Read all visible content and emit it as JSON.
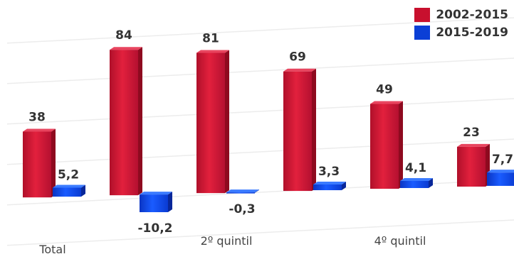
{
  "chart_data": {
    "type": "bar",
    "categories": [
      "Total",
      "",
      "2º quintil",
      "",
      "4º quintil",
      ""
    ],
    "series": [
      {
        "name": "2002-2015",
        "values": [
          38,
          84,
          81,
          69,
          49,
          23
        ],
        "labels": [
          "38",
          "84",
          "81",
          "69",
          "49",
          "23"
        ],
        "color": "#c8102e"
      },
      {
        "name": "2015-2019",
        "values": [
          5.2,
          -10.2,
          -0.3,
          3.3,
          4.1,
          7.7
        ],
        "labels": [
          "5,2",
          "-10,2",
          "-0,3",
          "3,3",
          "4,1",
          "7,7"
        ],
        "color": "#0b3fd6"
      }
    ],
    "title": "",
    "xlabel": "",
    "ylabel": "",
    "ylim": [
      -15,
      90
    ],
    "grid": true,
    "legend_position": "top-right"
  }
}
